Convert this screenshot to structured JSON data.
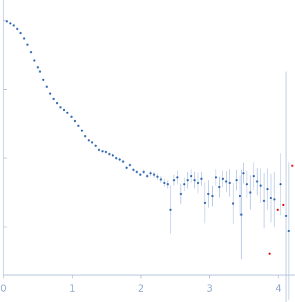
{
  "chart_data": {
    "type": "scatter",
    "xlim": [
      0,
      4.2
    ],
    "ylim": [
      -3.7,
      0.3
    ],
    "xticks": [
      0,
      1,
      2,
      3,
      4
    ],
    "yticks": [
      0,
      -1,
      -2,
      -3
    ],
    "series": [
      {
        "color": "#3d6fb5",
        "err_color": "#b3c6e4",
        "x": [
          0.05,
          0.1,
          0.15,
          0.2,
          0.25,
          0.3,
          0.35,
          0.4,
          0.45,
          0.5,
          0.53,
          0.58,
          0.63,
          0.68,
          0.73,
          0.78,
          0.83,
          0.88,
          0.93,
          0.99,
          1.04,
          1.09,
          1.14,
          1.19,
          1.24,
          1.29,
          1.34,
          1.39,
          1.44,
          1.49,
          1.54,
          1.59,
          1.64,
          1.69,
          1.74,
          1.79,
          1.84,
          1.89,
          1.94,
          1.99,
          2.04,
          2.09,
          2.14,
          2.19,
          2.24,
          2.29,
          2.34,
          2.39,
          2.43,
          2.48,
          2.53,
          2.58,
          2.63,
          2.68,
          2.73,
          2.78,
          2.83,
          2.88,
          2.93,
          2.98,
          3.04,
          3.09,
          3.14,
          3.19,
          3.24,
          3.29,
          3.34,
          3.39,
          3.44,
          3.46,
          3.49,
          3.54,
          3.59,
          3.64,
          3.69,
          3.74,
          3.79,
          3.84,
          3.89,
          3.94,
          4.03,
          4.11,
          4.15
        ],
        "values": [
          -0.01,
          -0.04,
          -0.07,
          -0.12,
          -0.18,
          -0.26,
          -0.35,
          -0.46,
          -0.58,
          -0.68,
          -0.74,
          -0.86,
          -0.96,
          -1.06,
          -1.14,
          -1.2,
          -1.26,
          -1.3,
          -1.34,
          -1.4,
          -1.46,
          -1.53,
          -1.6,
          -1.68,
          -1.74,
          -1.77,
          -1.82,
          -1.88,
          -1.9,
          -1.91,
          -1.94,
          -1.96,
          -2.0,
          -2.02,
          -2.05,
          -2.14,
          -2.1,
          -2.17,
          -2.2,
          -2.24,
          -2.2,
          -2.26,
          -2.22,
          -2.24,
          -2.27,
          -2.31,
          -2.36,
          -2.38,
          -2.75,
          -2.32,
          -2.28,
          -2.52,
          -2.38,
          -2.32,
          -2.26,
          -2.32,
          -2.36,
          -2.3,
          -2.65,
          -2.52,
          -2.55,
          -2.28,
          -2.42,
          -2.3,
          -2.34,
          -2.36,
          -2.66,
          -2.32,
          -2.55,
          -2.82,
          -2.22,
          -2.38,
          -2.5,
          -2.26,
          -2.34,
          -2.4,
          -2.62,
          -2.45,
          -2.58,
          -2.6,
          -2.38,
          -2.84,
          -3.06
        ],
        "errors": [
          0.01,
          0.01,
          0.01,
          0.01,
          0.01,
          0.01,
          0.01,
          0.01,
          0.01,
          0.01,
          0.01,
          0.01,
          0.01,
          0.01,
          0.01,
          0.01,
          0.01,
          0.01,
          0.01,
          0.01,
          0.01,
          0.01,
          0.01,
          0.01,
          0.01,
          0.01,
          0.01,
          0.01,
          0.01,
          0.01,
          0.02,
          0.02,
          0.02,
          0.02,
          0.02,
          0.02,
          0.02,
          0.02,
          0.02,
          0.02,
          0.03,
          0.03,
          0.04,
          0.04,
          0.05,
          0.05,
          0.06,
          0.06,
          0.35,
          0.08,
          0.1,
          0.15,
          0.1,
          0.12,
          0.1,
          0.12,
          0.15,
          0.1,
          0.3,
          0.2,
          0.15,
          0.12,
          0.15,
          0.12,
          0.15,
          0.2,
          0.3,
          0.15,
          0.3,
          0.65,
          0.15,
          0.2,
          0.25,
          0.2,
          0.2,
          0.25,
          0.4,
          0.3,
          0.35,
          0.4,
          0.45,
          2.1,
          1.0
        ]
      },
      {
        "color": "#e0201b",
        "x": [
          3.87,
          3.99,
          4.07,
          4.2
        ],
        "values": [
          -3.39,
          -2.75,
          -2.68,
          -2.11
        ]
      }
    ]
  }
}
